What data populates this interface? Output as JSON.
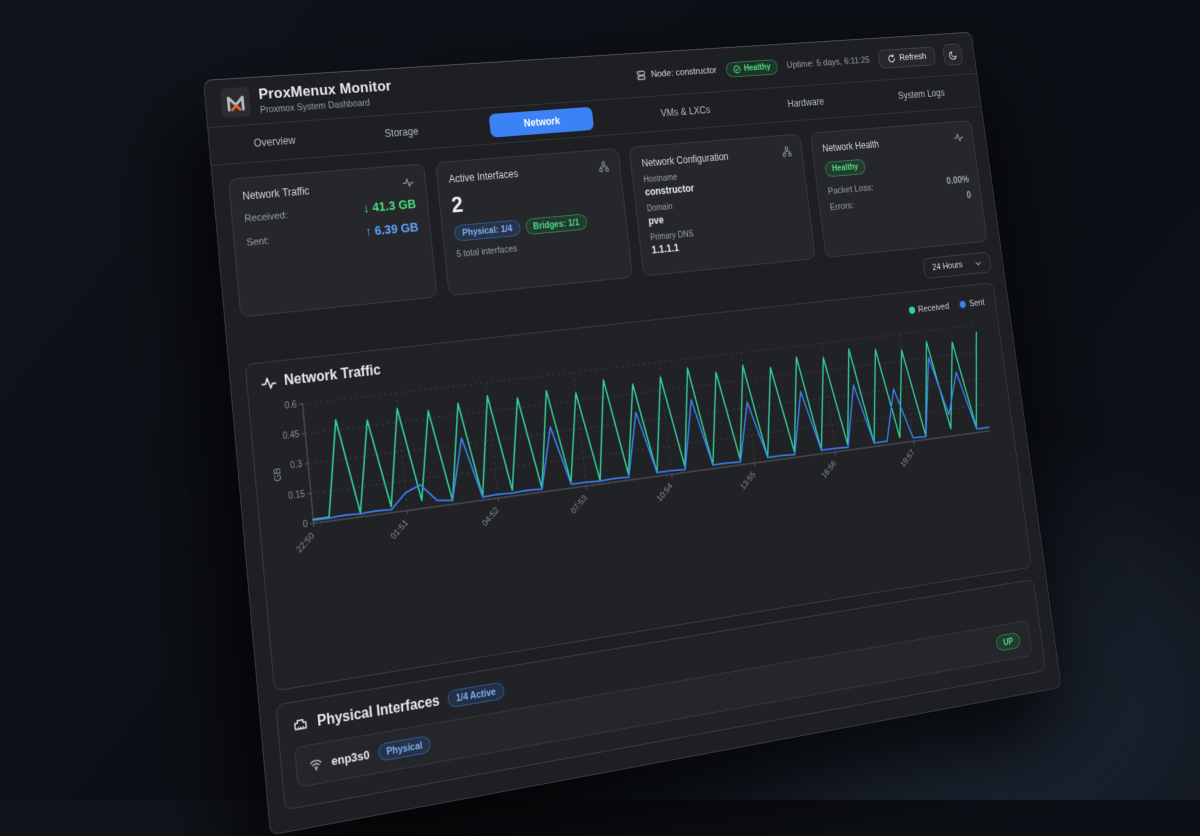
{
  "colors": {
    "accent_blue": "#3b82f6",
    "status_green": "#4ade80",
    "window_bg": "#1d1f23",
    "card_bg": "#25272b"
  },
  "header": {
    "title": "ProxMenux Monitor",
    "subtitle": "Proxmox System Dashboard",
    "node_label": "Node: constructor",
    "health_badge": "Healthy",
    "uptime": "Uptime: 5 days, 6:11:25",
    "refresh_label": "Refresh"
  },
  "tabs": {
    "active": "Network",
    "items": [
      "Overview",
      "Storage",
      "Network",
      "VMs & LXCs",
      "Hardware",
      "System Logs"
    ]
  },
  "cards": {
    "network_traffic": {
      "title": "Network Traffic",
      "received_label": "Received:",
      "received_arrow": "↓",
      "received_value": "41.3 GB",
      "sent_label": "Sent:",
      "sent_arrow": "↑",
      "sent_value": "6.39 GB"
    },
    "active_interfaces": {
      "title": "Active Interfaces",
      "count": "2",
      "physical_badge": "Physical: 1/4",
      "bridges_badge": "Bridges: 1/1",
      "total": "5 total interfaces"
    },
    "network_config": {
      "title": "Network Configuration",
      "hostname_label": "Hostname",
      "hostname": "constructor",
      "domain_label": "Domain",
      "domain": "pve",
      "dns_label": "Primary DNS",
      "dns": "1.1.1.1"
    },
    "network_health": {
      "title": "Network Health",
      "status_badge": "Healthy",
      "packet_loss_label": "Packet Loss:",
      "packet_loss": "0.00%",
      "errors_label": "Errors:",
      "errors": "0"
    }
  },
  "range_select": {
    "value": "24 Hours"
  },
  "chart_section": {
    "title": "Network Traffic",
    "legend": [
      {
        "label": "Received"
      },
      {
        "label": "Sent"
      }
    ]
  },
  "chart_data": {
    "type": "line",
    "title": "Network Traffic",
    "ylabel": "GB",
    "ylim": [
      0,
      0.6
    ],
    "yticks": [
      0,
      0.15,
      0.3,
      0.45,
      0.6
    ],
    "x_tick_labels": [
      "22:50",
      "01:51",
      "04:52",
      "07:53",
      "10:54",
      "13:55",
      "16:56",
      "19:57"
    ],
    "x_tick_indices": [
      0,
      6,
      12,
      18,
      24,
      30,
      36,
      42
    ],
    "grid": "dashed",
    "legend_position": "top-right",
    "series": [
      {
        "name": "Received",
        "color": "#34d399",
        "values": [
          0.02,
          0.02,
          0.5,
          0.02,
          0.48,
          0.03,
          0.52,
          0.04,
          0.49,
          0.02,
          0.51,
          0.02,
          0.53,
          0.03,
          0.5,
          0.02,
          0.52,
          0.03,
          0.49,
          0.02,
          0.54,
          0.03,
          0.5,
          0.02,
          0.52,
          0.03,
          0.55,
          0.02,
          0.51,
          0.03,
          0.53,
          0.02,
          0.5,
          0.03,
          0.54,
          0.02,
          0.52,
          0.03,
          0.55,
          0.02,
          0.53,
          0.03,
          0.51,
          0.02,
          0.54,
          0.04,
          0.52,
          0.03,
          0.56
        ]
      },
      {
        "name": "Sent",
        "color": "#3b82f6",
        "values": [
          0.015,
          0.015,
          0.02,
          0.015,
          0.02,
          0.015,
          0.09,
          0.12,
          0.03,
          0.02,
          0.33,
          0.015,
          0.02,
          0.015,
          0.02,
          0.015,
          0.33,
          0.02,
          0.02,
          0.015,
          0.02,
          0.015,
          0.35,
          0.02,
          0.02,
          0.015,
          0.38,
          0.02,
          0.02,
          0.015,
          0.33,
          0.02,
          0.02,
          0.015,
          0.35,
          0.02,
          0.02,
          0.015,
          0.35,
          0.02,
          0.02,
          0.3,
          0.02,
          0.015,
          0.45,
          0.12,
          0.35,
          0.02,
          0.02
        ]
      }
    ]
  },
  "interfaces_section": {
    "title": "Physical Interfaces",
    "active_badge": "1/4 Active",
    "rows": [
      {
        "name": "enp3s0",
        "type_badge": "Physical",
        "status": "UP"
      }
    ]
  }
}
